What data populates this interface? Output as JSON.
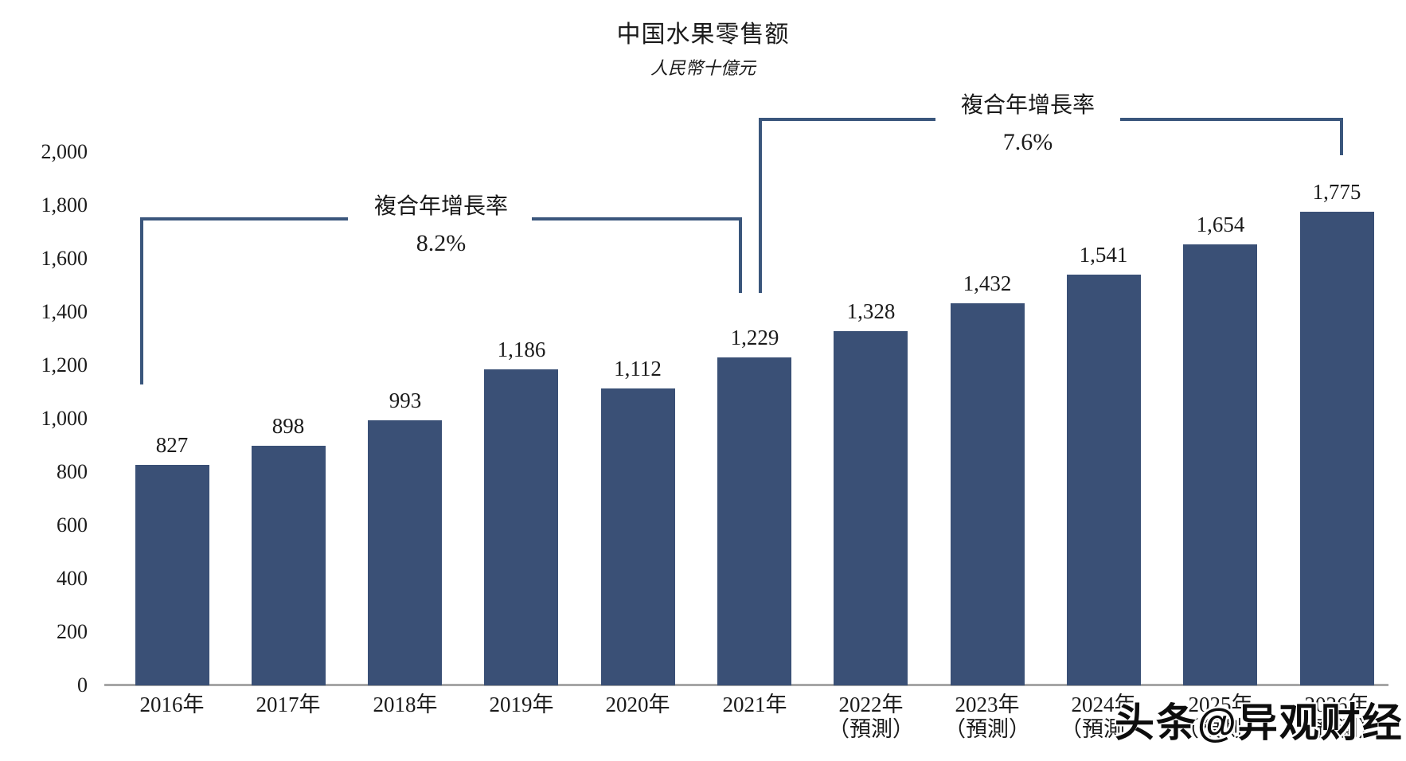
{
  "chart_data": {
    "type": "bar",
    "title": "中国水果零售额",
    "subtitle": "人民幣十億元",
    "categories": [
      "2016年",
      "2017年",
      "2018年",
      "2019年",
      "2020年",
      "2021年",
      "2022年",
      "2023年",
      "2024年",
      "2025年",
      "2026年"
    ],
    "forecast_note": "（預測）",
    "forecast_start_index": 6,
    "values": [
      827,
      898,
      993,
      1186,
      1112,
      1229,
      1328,
      1432,
      1541,
      1654,
      1775
    ],
    "value_labels": [
      "827",
      "898",
      "993",
      "1,186",
      "1,112",
      "1,229",
      "1,328",
      "1,432",
      "1,541",
      "1,654",
      "1,775"
    ],
    "ylim": [
      0,
      2000
    ],
    "yticks": [
      0,
      200,
      400,
      600,
      800,
      1000,
      1200,
      1400,
      1600,
      1800,
      2000
    ],
    "ytick_labels": [
      "0",
      "200",
      "400",
      "600",
      "800",
      "1,000",
      "1,200",
      "1,400",
      "1,600",
      "1,800",
      "2,000"
    ],
    "grid": false,
    "legend": null,
    "annotations": [
      {
        "label": "複合年增長率",
        "value": "8.2%",
        "from": "2016年",
        "to": "2021年"
      },
      {
        "label": "複合年增長率",
        "value": "7.6%",
        "from": "2021年",
        "to": "2026年"
      }
    ]
  },
  "watermark": {
    "text": "头条@异观财经"
  },
  "colors": {
    "bar": "#3a5076",
    "bracket_line": "#3a567c",
    "axis_line": "#a6a6a6",
    "text": "#1a1a1a"
  }
}
